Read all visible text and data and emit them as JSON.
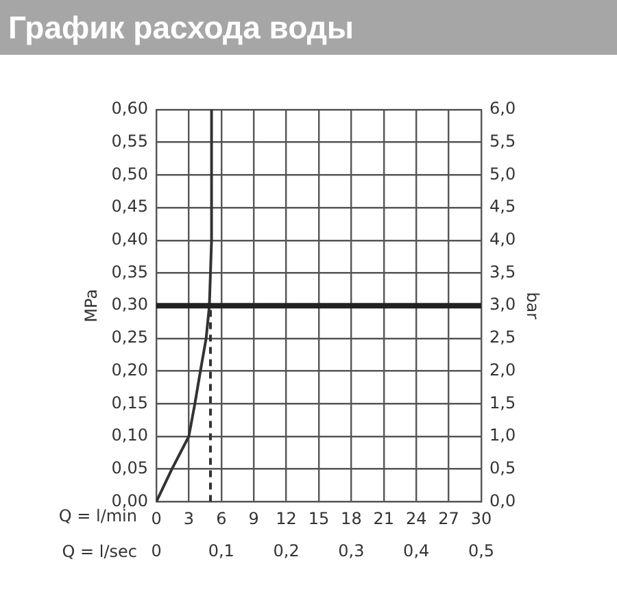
{
  "chart_data": {
    "type": "line",
    "title": "График расхода воды",
    "xlabel": "Q = l/min",
    "x2label": "Q = l/sec",
    "ylabel": "MPa",
    "y2label": "bar",
    "xlim": [
      0,
      30
    ],
    "xticks": [
      0,
      3,
      6,
      9,
      12,
      15,
      18,
      21,
      24,
      27,
      30
    ],
    "x2lim": [
      0,
      0.5
    ],
    "x2ticks": [
      {
        "value": 0,
        "label": "0"
      },
      {
        "value": 0.1,
        "label": "0,1"
      },
      {
        "value": 0.2,
        "label": "0,2"
      },
      {
        "value": 0.3,
        "label": "0,3"
      },
      {
        "value": 0.4,
        "label": "0,4"
      },
      {
        "value": 0.5,
        "label": "0,5"
      }
    ],
    "ylim": [
      0,
      0.6
    ],
    "yticks": [
      {
        "value": 0,
        "label": "0,00"
      },
      {
        "value": 0.05,
        "label": "0,05"
      },
      {
        "value": 0.1,
        "label": "0,10"
      },
      {
        "value": 0.15,
        "label": "0,15"
      },
      {
        "value": 0.2,
        "label": "0,20"
      },
      {
        "value": 0.25,
        "label": "0,25"
      },
      {
        "value": 0.3,
        "label": "0,30"
      },
      {
        "value": 0.35,
        "label": "0,35"
      },
      {
        "value": 0.4,
        "label": "0,40"
      },
      {
        "value": 0.45,
        "label": "0,45"
      },
      {
        "value": 0.5,
        "label": "0,50"
      },
      {
        "value": 0.55,
        "label": "0,55"
      },
      {
        "value": 0.6,
        "label": "0,60"
      }
    ],
    "y2lim": [
      0,
      6
    ],
    "y2ticks": [
      {
        "value": 0,
        "label": "0,0"
      },
      {
        "value": 0.5,
        "label": "0,5"
      },
      {
        "value": 1,
        "label": "1,0"
      },
      {
        "value": 1.5,
        "label": "1,5"
      },
      {
        "value": 2,
        "label": "2,0"
      },
      {
        "value": 2.5,
        "label": "2,5"
      },
      {
        "value": 3,
        "label": "3,0"
      },
      {
        "value": 3.5,
        "label": "3,5"
      },
      {
        "value": 4,
        "label": "4,0"
      },
      {
        "value": 4.5,
        "label": "4,5"
      },
      {
        "value": 5,
        "label": "5,0"
      },
      {
        "value": 5.5,
        "label": "5,5"
      },
      {
        "value": 6,
        "label": "6,0"
      }
    ],
    "grid": true,
    "legend": false,
    "marker": "none",
    "ref_lines": [
      {
        "axis": "y",
        "value": 0.3,
        "color": "#222222"
      }
    ],
    "series": [
      {
        "color": "#333333",
        "x": [
          0,
          1.44,
          3,
          3.56,
          4.07,
          4.6,
          4.9,
          5.1,
          5.1
        ],
        "values": [
          0,
          0.05,
          0.1,
          0.15,
          0.2,
          0.25,
          0.3,
          0.4,
          0.6
        ]
      },
      {
        "color": "#333333",
        "line_style": "dashed",
        "x": [
          5,
          5
        ],
        "values": [
          0,
          0.3
        ]
      }
    ]
  }
}
